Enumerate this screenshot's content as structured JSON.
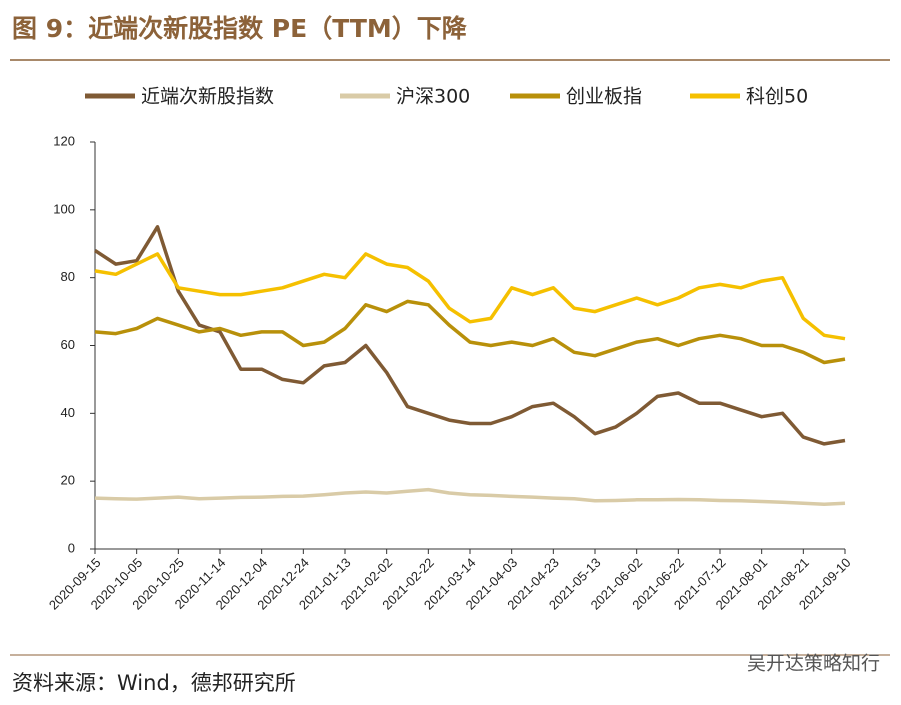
{
  "chart_data": {
    "type": "line",
    "title": "图 9：近端次新股指数 PE（TTM）下降",
    "source": "资料来源：Wind，德邦研究所",
    "watermark": "吴开达策略知行",
    "x": [
      "2020-09-15",
      "2020-09-25",
      "2020-10-05",
      "2020-10-15",
      "2020-10-25",
      "2020-11-04",
      "2020-11-14",
      "2020-11-24",
      "2020-12-04",
      "2020-12-14",
      "2020-12-24",
      "2021-01-03",
      "2021-01-13",
      "2021-01-23",
      "2021-02-02",
      "2021-02-12",
      "2021-02-22",
      "2021-03-04",
      "2021-03-14",
      "2021-03-24",
      "2021-04-03",
      "2021-04-13",
      "2021-04-23",
      "2021-05-03",
      "2021-05-13",
      "2021-05-23",
      "2021-06-02",
      "2021-06-12",
      "2021-06-22",
      "2021-07-02",
      "2021-07-12",
      "2021-07-22",
      "2021-08-01",
      "2021-08-11",
      "2021-08-21",
      "2021-08-31",
      "2021-09-10"
    ],
    "series": [
      {
        "name": "近端次新股指数",
        "color": "#7f5a34",
        "values": [
          88,
          84,
          85,
          95,
          76,
          66,
          64,
          53,
          53,
          50,
          49,
          54,
          55,
          60,
          52,
          42,
          40,
          38,
          37,
          37,
          39,
          42,
          43,
          39,
          34,
          36,
          40,
          45,
          46,
          43,
          43,
          41,
          39,
          40,
          33,
          31,
          32
        ]
      },
      {
        "name": "沪深300",
        "color": "#d9cba7",
        "values": [
          15,
          14.8,
          14.7,
          15,
          15.3,
          14.8,
          15,
          15.2,
          15.3,
          15.5,
          15.6,
          16,
          16.5,
          16.8,
          16.5,
          17,
          17.5,
          16.5,
          16,
          15.8,
          15.5,
          15.3,
          15,
          14.8,
          14.2,
          14.3,
          14.5,
          14.5,
          14.6,
          14.5,
          14.3,
          14.2,
          14,
          13.8,
          13.5,
          13.2,
          13.5
        ]
      },
      {
        "name": "创业板指",
        "color": "#b8900a",
        "values": [
          64,
          63.5,
          65,
          68,
          66,
          64,
          65,
          63,
          64,
          64,
          60,
          61,
          65,
          72,
          70,
          73,
          72,
          66,
          61,
          60,
          61,
          60,
          62,
          58,
          57,
          59,
          61,
          62,
          60,
          62,
          63,
          62,
          60,
          60,
          58,
          55,
          56
        ]
      },
      {
        "name": "科创50",
        "color": "#f5c000",
        "values": [
          82,
          81,
          84,
          87,
          77,
          76,
          75,
          75,
          76,
          77,
          79,
          81,
          80,
          87,
          84,
          83,
          79,
          71,
          67,
          68,
          77,
          75,
          77,
          71,
          70,
          72,
          74,
          72,
          74,
          77,
          78,
          77,
          79,
          80,
          68,
          63,
          62
        ]
      }
    ],
    "xlim": [
      "2020-09-15",
      "2021-09-10"
    ],
    "xticks": [
      "2020-09-15",
      "2020-10-05",
      "2020-10-25",
      "2020-11-14",
      "2020-12-04",
      "2020-12-24",
      "2021-01-13",
      "2021-02-02",
      "2021-02-22",
      "2021-03-14",
      "2021-04-03",
      "2021-04-23",
      "2021-05-13",
      "2021-06-02",
      "2021-06-22",
      "2021-07-12",
      "2021-08-01",
      "2021-08-21",
      "2021-09-10"
    ],
    "ylim": [
      0,
      120
    ],
    "yticks": [
      0,
      20,
      40,
      60,
      80,
      100,
      120
    ],
    "grid": false
  }
}
